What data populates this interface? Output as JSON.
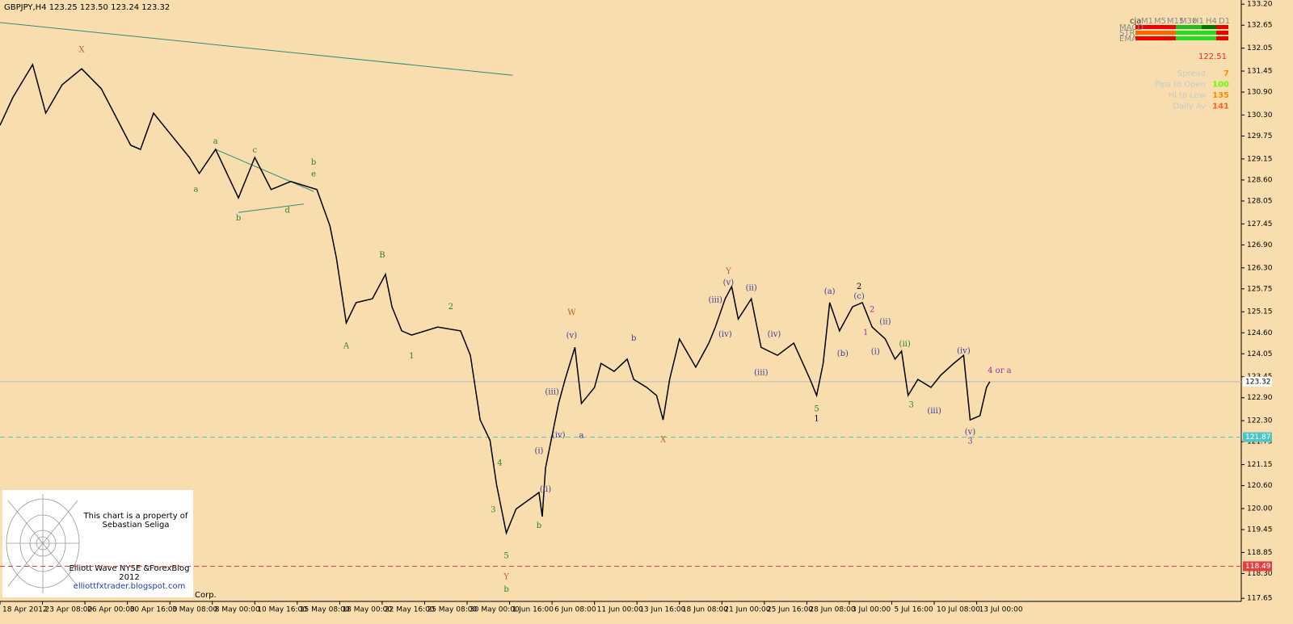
{
  "chart_data": {
    "type": "line",
    "header": "GBPJPY,H4  123.25 123.50 123.24 123.32",
    "color": "#000000",
    "x": [
      0,
      4,
      10,
      14,
      19,
      25,
      31,
      40,
      43,
      47,
      52,
      58,
      61,
      66,
      73,
      78,
      83,
      89,
      97,
      101,
      103,
      106,
      109,
      114,
      118,
      120,
      123,
      126,
      134,
      141,
      144,
      147,
      150,
      152,
      155,
      158,
      165,
      166,
      167,
      171,
      173,
      176,
      178,
      182,
      184,
      188,
      192,
      194,
      198,
      201,
      203,
      205,
      208,
      213,
      217,
      219,
      222,
      224,
      226,
      230,
      233,
      238,
      243,
      248,
      250,
      252,
      254,
      257,
      261,
      264,
      267,
      271,
      274,
      276,
      278,
      281,
      285,
      288,
      292,
      295,
      297,
      300,
      302,
      303
    ],
    "values": [
      130.03,
      130.77,
      131.62,
      130.35,
      131.09,
      131.51,
      130.99,
      129.51,
      129.4,
      130.35,
      129.82,
      129.19,
      128.77,
      129.4,
      128.13,
      129.19,
      128.35,
      128.56,
      128.35,
      127.4,
      126.55,
      124.86,
      125.39,
      125.49,
      126.13,
      125.28,
      124.65,
      124.54,
      124.75,
      124.65,
      124.01,
      122.32,
      121.79,
      120.63,
      119.36,
      119.99,
      120.42,
      119.79,
      121.06,
      122.75,
      123.38,
      124.22,
      122.75,
      123.17,
      123.8,
      123.59,
      123.91,
      123.38,
      123.17,
      122.96,
      122.32,
      123.38,
      124.44,
      123.7,
      124.33,
      124.75,
      125.49,
      125.81,
      124.96,
      125.49,
      124.22,
      124.01,
      124.33,
      123.38,
      122.96,
      123.8,
      125.39,
      124.65,
      125.28,
      125.39,
      124.75,
      124.44,
      123.91,
      124.12,
      122.96,
      123.38,
      123.17,
      123.49,
      123.8,
      124.01,
      122.32,
      122.43,
      123.17,
      123.32
    ],
    "xlim": [
      0,
      380
    ],
    "ylim": [
      117.57,
      133.31
    ],
    "xticks": [
      {
        "value": 0,
        "label": "18 Apr 2012"
      },
      {
        "value": 13,
        "label": "23 Apr 08:00"
      },
      {
        "value": 26,
        "label": "26 Apr 00:00"
      },
      {
        "value": 39,
        "label": "30 Apr 16:00"
      },
      {
        "value": 52,
        "label": "3 May 08:00"
      },
      {
        "value": 65,
        "label": "8 May 00:00"
      },
      {
        "value": 78,
        "label": "10 May 16:00"
      },
      {
        "value": 91,
        "label": "15 May 08:00"
      },
      {
        "value": 104,
        "label": "18 May 00:00"
      },
      {
        "value": 117,
        "label": "22 May 16:00"
      },
      {
        "value": 130,
        "label": "25 May 08:00"
      },
      {
        "value": 143,
        "label": "30 May 00:00"
      },
      {
        "value": 156,
        "label": "1 Jun 16:00"
      },
      {
        "value": 169,
        "label": "6 Jun 08:00"
      },
      {
        "value": 182,
        "label": "11 Jun 00:00"
      },
      {
        "value": 195,
        "label": "13 Jun 16:00"
      },
      {
        "value": 208,
        "label": "18 Jun 08:00"
      },
      {
        "value": 221,
        "label": "21 Jun 00:00"
      },
      {
        "value": 234,
        "label": "25 Jun 16:00"
      },
      {
        "value": 247,
        "label": "28 Jun 08:00"
      },
      {
        "value": 260,
        "label": "3 Jul 00:00"
      },
      {
        "value": 273,
        "label": "5 Jul 16:00"
      },
      {
        "value": 286,
        "label": "10 Jul 08:00"
      },
      {
        "value": 299,
        "label": "13 Jul 00:00"
      }
    ],
    "yticks": [
      {
        "value": 133.2,
        "label": "133.20"
      },
      132.65,
      132.05,
      131.45,
      {
        "value": 130.9,
        "label": "130.90"
      },
      {
        "value": 130.3,
        "label": "130.30"
      },
      129.75,
      129.15,
      {
        "value": 128.6,
        "label": "128.60"
      },
      128.05,
      127.45,
      {
        "value": 126.9,
        "label": "126.90"
      },
      {
        "value": 126.3,
        "label": "126.30"
      },
      125.75,
      125.15,
      {
        "value": 124.6,
        "label": "124.60"
      },
      124.05,
      123.45,
      {
        "value": 122.9,
        "label": "122.90"
      },
      {
        "value": 122.3,
        "label": "122.30"
      },
      121.75,
      121.15,
      {
        "value": 120.6,
        "label": "120.60"
      },
      {
        "value": 120,
        "label": "120.00"
      },
      119.45,
      118.85,
      {
        "value": 118.3,
        "label": "118.30"
      },
      117.65
    ],
    "price_lines": [
      {
        "value": 123.32,
        "color": "#b8b8b8",
        "dashed": false
      },
      {
        "value": 121.87,
        "color": "#4fc4c4",
        "dashed": true
      },
      {
        "value": 118.49,
        "color": "#e04040",
        "dashed": true
      }
    ],
    "trendlines": [
      {
        "x": [
          0,
          157
        ],
        "y": [
          132.72,
          131.34
        ],
        "color": "#2e8b7a"
      },
      {
        "x": [
          66,
          96
        ],
        "y": [
          129.4,
          128.3
        ],
        "color": "#2e8b7a"
      },
      {
        "x": [
          73,
          93
        ],
        "y": [
          127.75,
          127.97
        ],
        "color": "#2e8b7a"
      }
    ],
    "annotations": [
      {
        "text": "X",
        "x": 25,
        "y": 132.0,
        "color": "#c0602a"
      },
      {
        "text": "a",
        "x": 60,
        "y": 128.35,
        "color": "#2e7d32"
      },
      {
        "text": "a",
        "x": 66,
        "y": 129.6,
        "color": "#2e7d32"
      },
      {
        "text": "b",
        "x": 73,
        "y": 127.6,
        "color": "#2e7d32"
      },
      {
        "text": "c",
        "x": 78,
        "y": 129.37,
        "color": "#2e7d32"
      },
      {
        "text": "d",
        "x": 88,
        "y": 127.8,
        "color": "#2e7d32"
      },
      {
        "text": "b",
        "x": 96,
        "y": 129.05,
        "color": "#2e7d32"
      },
      {
        "text": "e",
        "x": 96,
        "y": 128.75,
        "color": "#2e7d32"
      },
      {
        "text": "B",
        "x": 117,
        "y": 126.62,
        "color": "#2e7d32"
      },
      {
        "text": "A",
        "x": 106,
        "y": 124.25,
        "color": "#2e7d32"
      },
      {
        "text": "1",
        "x": 126,
        "y": 123.98,
        "color": "#2e7d32"
      },
      {
        "text": "2",
        "x": 138,
        "y": 125.27,
        "color": "#2e7d32"
      },
      {
        "text": "3",
        "x": 151,
        "y": 119.96,
        "color": "#2e7d32"
      },
      {
        "text": "4",
        "x": 153,
        "y": 121.18,
        "color": "#2e7d32"
      },
      {
        "text": "5",
        "x": 155,
        "y": 118.75,
        "color": "#2e7d32"
      },
      {
        "text": "Y",
        "x": 155,
        "y": 118.2,
        "color": "#c0602a"
      },
      {
        "text": "b",
        "x": 155,
        "y": 117.88,
        "color": "#2e7d32"
      },
      {
        "text": "b",
        "x": 165,
        "y": 119.55,
        "color": "#2e7d32"
      },
      {
        "text": "W",
        "x": 175,
        "y": 125.12,
        "color": "#c0602a"
      },
      {
        "text": "(v)",
        "x": 175,
        "y": 124.52,
        "color": "#3b3b99"
      },
      {
        "text": "(iii)",
        "x": 169,
        "y": 123.04,
        "color": "#3b3b99"
      },
      {
        "text": "(iv)",
        "x": 171,
        "y": 121.91,
        "color": "#3b3b99"
      },
      {
        "text": "(i)",
        "x": 165,
        "y": 121.5,
        "color": "#3b3b99"
      },
      {
        "text": "(ii)",
        "x": 167,
        "y": 120.5,
        "color": "#3b3b99"
      },
      {
        "text": "a",
        "x": 178,
        "y": 121.9,
        "color": "#3b3b99"
      },
      {
        "text": "b",
        "x": 194,
        "y": 124.45,
        "color": "#3b3b99"
      },
      {
        "text": "X",
        "x": 203,
        "y": 121.8,
        "color": "#c0602a"
      },
      {
        "text": "Y",
        "x": 223,
        "y": 126.2,
        "color": "#c0602a"
      },
      {
        "text": "(v)",
        "x": 223,
        "y": 125.9,
        "color": "#3b3b99"
      },
      {
        "text": "(iii)",
        "x": 219,
        "y": 125.45,
        "color": "#3b3b99"
      },
      {
        "text": "(iv)",
        "x": 222,
        "y": 124.55,
        "color": "#3b3b99"
      },
      {
        "text": "(ii)",
        "x": 230,
        "y": 125.77,
        "color": "#3b3b99"
      },
      {
        "text": "(iv)",
        "x": 237,
        "y": 124.55,
        "color": "#3b3b99"
      },
      {
        "text": "(iii)",
        "x": 233,
        "y": 123.55,
        "color": "#3b3b99"
      },
      {
        "text": "1",
        "x": 250,
        "y": 122.35,
        "color": "#000000"
      },
      {
        "text": "5",
        "x": 250,
        "y": 122.6,
        "color": "#2e7d32"
      },
      {
        "text": "(a)",
        "x": 254,
        "y": 125.67,
        "color": "#3b3b99"
      },
      {
        "text": "2",
        "x": 263,
        "y": 125.8,
        "color": "#000000"
      },
      {
        "text": "(c)",
        "x": 263,
        "y": 125.55,
        "color": "#3b3b99"
      },
      {
        "text": "2",
        "x": 267,
        "y": 125.2,
        "color": "#993399"
      },
      {
        "text": "1",
        "x": 265,
        "y": 124.6,
        "color": "#993399"
      },
      {
        "text": "(b)",
        "x": 258,
        "y": 124.05,
        "color": "#3b3b99"
      },
      {
        "text": "(ii)",
        "x": 271,
        "y": 124.88,
        "color": "#3b3b99"
      },
      {
        "text": "(i)",
        "x": 268,
        "y": 124.1,
        "color": "#3b3b99"
      },
      {
        "text": "(ii)",
        "x": 277,
        "y": 124.3,
        "color": "#2e7d32"
      },
      {
        "text": "3",
        "x": 279,
        "y": 122.7,
        "color": "#2e7d32"
      },
      {
        "text": "(iii)",
        "x": 286,
        "y": 122.55,
        "color": "#3b3b99"
      },
      {
        "text": "(iv)",
        "x": 295,
        "y": 124.12,
        "color": "#3b3b99"
      },
      {
        "text": "(v)",
        "x": 297,
        "y": 122.0,
        "color": "#3b3b99"
      },
      {
        "text": "3",
        "x": 297,
        "y": 121.75,
        "color": "#993399"
      },
      {
        "text": "4 or a",
        "x": 306,
        "y": 123.6,
        "color": "#993399"
      }
    ]
  },
  "info": {
    "indicator": "cja",
    "timeframes": [
      "M1",
      "M5",
      "M15",
      "M30",
      "H1",
      "H4",
      "D1"
    ],
    "rows": [
      "MACD",
      "STR",
      "EMA"
    ],
    "price": 122.51,
    "stats": [
      {
        "label": "Spread",
        "value": 7,
        "color": "#ff8c00"
      },
      {
        "label": "Pips to Open",
        "value": 100,
        "color": "#66ff00"
      },
      {
        "label": "Hi to Low",
        "value": 135,
        "color": "#ff8c00"
      },
      {
        "label": "Daily Av",
        "value": 141,
        "color": "#ff6020"
      }
    ]
  },
  "watermark": {
    "line1": "This chart is a property of",
    "line2": "Sebastian Seliga",
    "line3": "Elliott Wave NYSE &ForexBlog",
    "line4": "2012",
    "line5": "elliottfxtrader.blogspot.com",
    "corp": "Corp."
  }
}
